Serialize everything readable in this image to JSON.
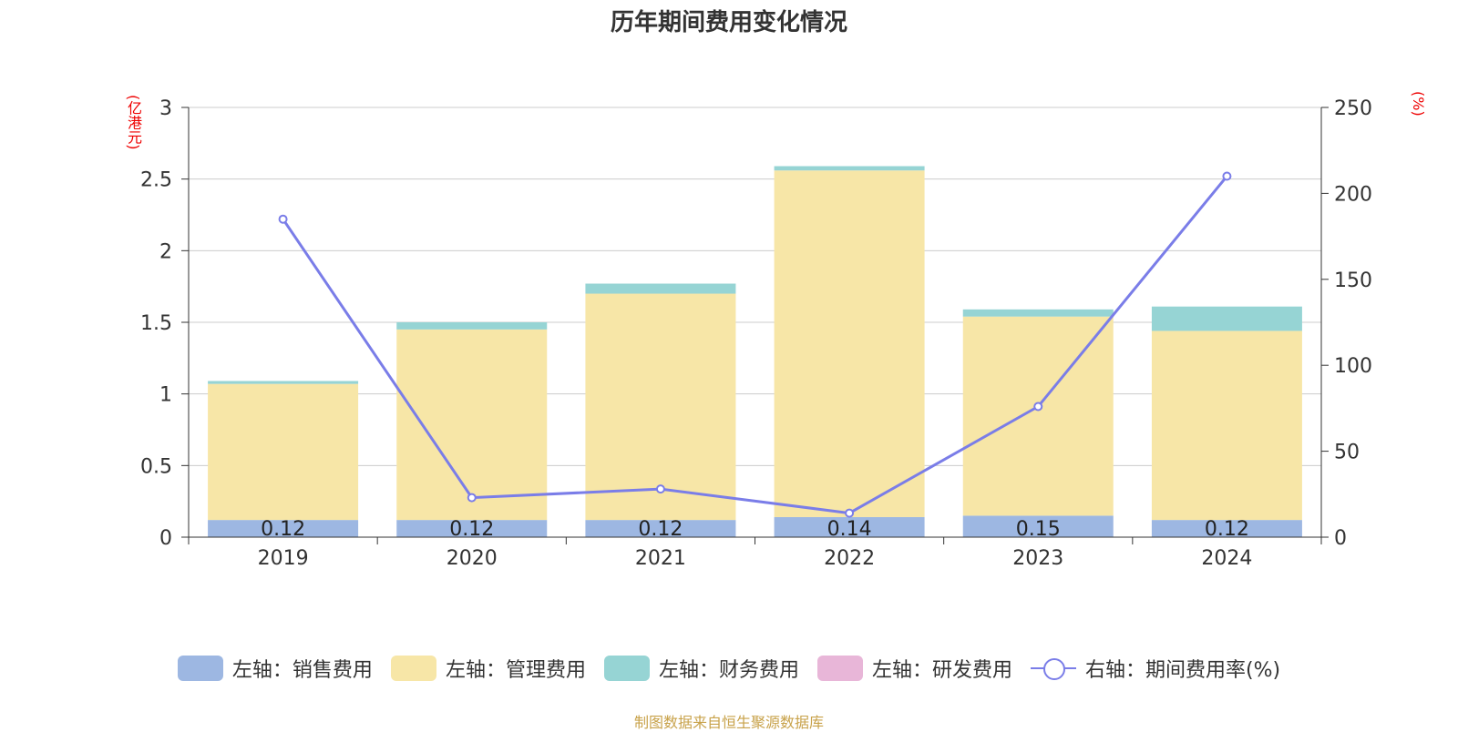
{
  "chart_data": {
    "type": "bar",
    "title": "历年期间费用变化情况",
    "categories": [
      "2019",
      "2020",
      "2021",
      "2022",
      "2023",
      "2024"
    ],
    "series": [
      {
        "name": "左轴：销售费用",
        "axis": "left",
        "color": "#9db7e2",
        "values": [
          0.12,
          0.12,
          0.12,
          0.14,
          0.15,
          0.12
        ]
      },
      {
        "name": "左轴：管理费用",
        "axis": "left",
        "color": "#f7e6a7",
        "values": [
          0.95,
          1.33,
          1.58,
          2.42,
          1.39,
          1.32
        ]
      },
      {
        "name": "左轴：财务费用",
        "axis": "left",
        "color": "#96d4d4",
        "values": [
          0.02,
          0.05,
          0.07,
          0.03,
          0.05,
          0.17
        ]
      },
      {
        "name": "左轴：研发费用",
        "axis": "left",
        "color": "#e8b6d8",
        "values": [
          0,
          0,
          0,
          0,
          0,
          0
        ]
      },
      {
        "name": "右轴：期间费用率(%)",
        "axis": "right",
        "type": "line",
        "color": "#7a7de8",
        "values": [
          185,
          23,
          28,
          14,
          76,
          210
        ]
      }
    ],
    "data_labels": [
      "0.12",
      "0.12",
      "0.12",
      "0.14",
      "0.15",
      "0.12"
    ],
    "ylabel": "(亿港元)",
    "ylabel_right": "(%)",
    "ylim": [
      0,
      3
    ],
    "ylim_right": [
      0,
      250
    ],
    "yticks": [
      "0",
      "0.5",
      "1",
      "1.5",
      "2",
      "2.5",
      "3"
    ],
    "yticks_right": [
      "0",
      "50",
      "100",
      "150",
      "200",
      "250"
    ],
    "grid": true,
    "legend_position": "bottom",
    "footer": "制图数据来自恒生聚源数据库"
  }
}
